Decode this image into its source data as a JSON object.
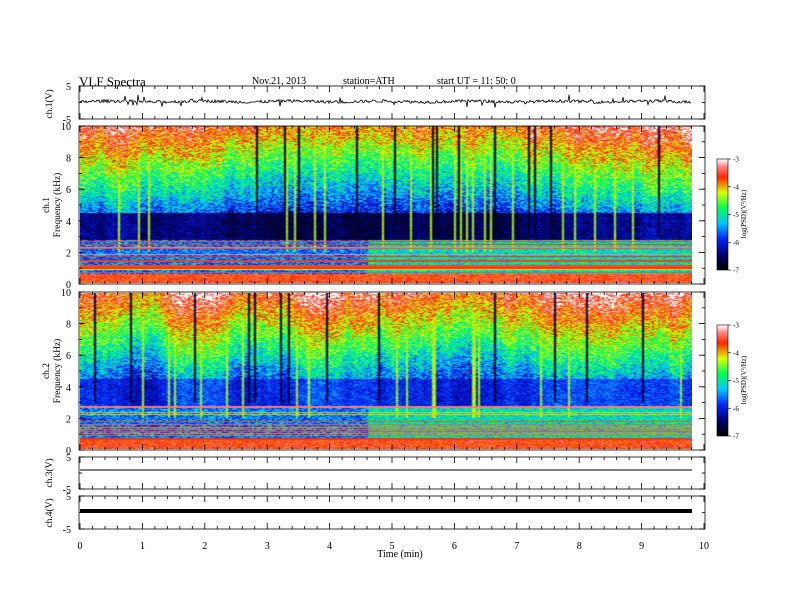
{
  "header": {
    "title": "VLF  Spectra",
    "date": "Nov.21, 2013",
    "station": "station=ATH",
    "start": "start  UT  =   11: 50: 0"
  },
  "chart_data": [
    {
      "type": "line",
      "panel": "ch1-waveform",
      "ylabel": "ch.1(V)",
      "ylim": [
        -5,
        5
      ],
      "yticks": [
        "5",
        "-5"
      ],
      "note": "noisy waveform centered near 0 V with frequent spikes up to about ±2 V"
    },
    {
      "type": "heatmap",
      "panel": "ch1-spectrogram",
      "ylabel": [
        "ch.1",
        "Frequency  (kHz)"
      ],
      "ylim": [
        0,
        10
      ],
      "yticks": [
        "10",
        "8",
        "6",
        "4",
        "2",
        "0"
      ],
      "colorbar": {
        "label": "log(PSD)(V²/Hz)",
        "range": [
          -7,
          -3
        ],
        "ticks": [
          "-3",
          "-4",
          "-5",
          "-6",
          "-7"
        ],
        "colormap": [
          "#000000",
          "#0000ff",
          "#00ffff",
          "#00ff00",
          "#ffff00",
          "#ff0000",
          "#ffffff"
        ]
      }
    },
    {
      "type": "heatmap",
      "panel": "ch2-spectrogram",
      "ylabel": [
        "ch.2",
        "Frequency  (kHz)"
      ],
      "ylim": [
        0,
        10
      ],
      "yticks": [
        "10",
        "8",
        "6",
        "4",
        "2",
        "0"
      ],
      "colorbar": {
        "label": "log(PSD)(V²/Hz)",
        "range": [
          -7,
          -3
        ],
        "ticks": [
          "-3",
          "-4",
          "-5",
          "-6",
          "-7"
        ]
      }
    },
    {
      "type": "line",
      "panel": "ch3-waveform",
      "ylabel": "ch.3(V)",
      "ylim": [
        -5,
        5
      ],
      "yticks": [
        "5",
        "-5"
      ],
      "level": 0
    },
    {
      "type": "line",
      "panel": "ch4-waveform",
      "ylabel": "ch.4(V)",
      "ylim": [
        -5,
        5
      ],
      "yticks": [
        "5",
        "-5"
      ],
      "level": 0
    }
  ],
  "xaxis": {
    "label": "Time  (min)",
    "range": [
      0,
      10
    ],
    "data_end": 9.8,
    "ticks": [
      "0",
      "1",
      "2",
      "3",
      "4",
      "5",
      "6",
      "7",
      "8",
      "9",
      "10"
    ]
  }
}
